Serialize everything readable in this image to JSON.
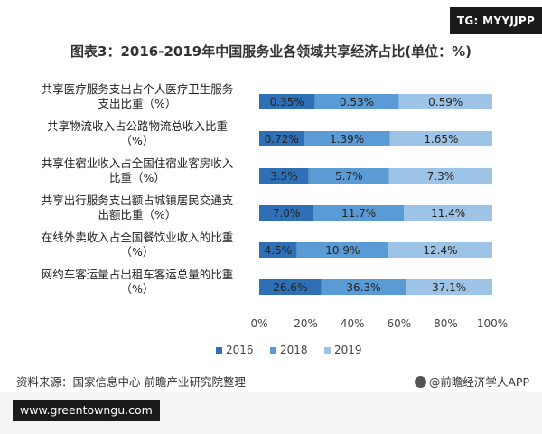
{
  "watermark": "TG: MYYJJPP",
  "source_text": "资料来源：国家信息中心 前瞻产业研究院整理",
  "credit_text": "@前瞻经济学人APP",
  "url_text": "www.greentowngu.com",
  "chart_data": {
    "type": "bar",
    "orientation": "horizontal",
    "stacked": true,
    "title": "图表3：2016-2019年中国服务业各领域共享经济占比(单位：%)",
    "categories": [
      [
        "共享医疗服务支出占个人医疗卫生服务",
        "支出比重（%）"
      ],
      [
        "共享物流收入占公路物流总收入比重",
        "（%）"
      ],
      [
        "共享住宿业收入占全国住宿业客房收入",
        "比重（%）"
      ],
      [
        "共享出行服务支出额占城镇居民交通支",
        "出额比重（%）"
      ],
      [
        "在线外卖收入占全国餐饮业收入的比重",
        "（%）"
      ],
      [
        "网约车客运量占出租车客运总量的比重",
        "（%）"
      ]
    ],
    "series": [
      {
        "name": "2016",
        "color": "#2e6fb5",
        "values": [
          0.35,
          0.72,
          3.5,
          7.0,
          4.5,
          26.6
        ],
        "labels": [
          "0.35%",
          "0.72%",
          "3.5%",
          "7.0%",
          "4.5%",
          "26.6%"
        ]
      },
      {
        "name": "2018",
        "color": "#5b9bd5",
        "values": [
          0.53,
          1.39,
          5.7,
          11.7,
          10.9,
          36.3
        ],
        "labels": [
          "0.53%",
          "1.39%",
          "5.7%",
          "11.7%",
          "10.9%",
          "36.3%"
        ]
      },
      {
        "name": "2019",
        "color": "#9dc3e6",
        "values": [
          0.59,
          1.65,
          7.3,
          11.4,
          12.4,
          37.1
        ],
        "labels": [
          "0.59%",
          "1.65%",
          "7.3%",
          "11.4%",
          "12.4%",
          "37.1%"
        ]
      }
    ],
    "xticks": [
      "0%",
      "20%",
      "40%",
      "60%",
      "80%",
      "100%"
    ],
    "xlim": [
      0,
      100
    ],
    "legend_position": "bottom",
    "grid": false
  }
}
